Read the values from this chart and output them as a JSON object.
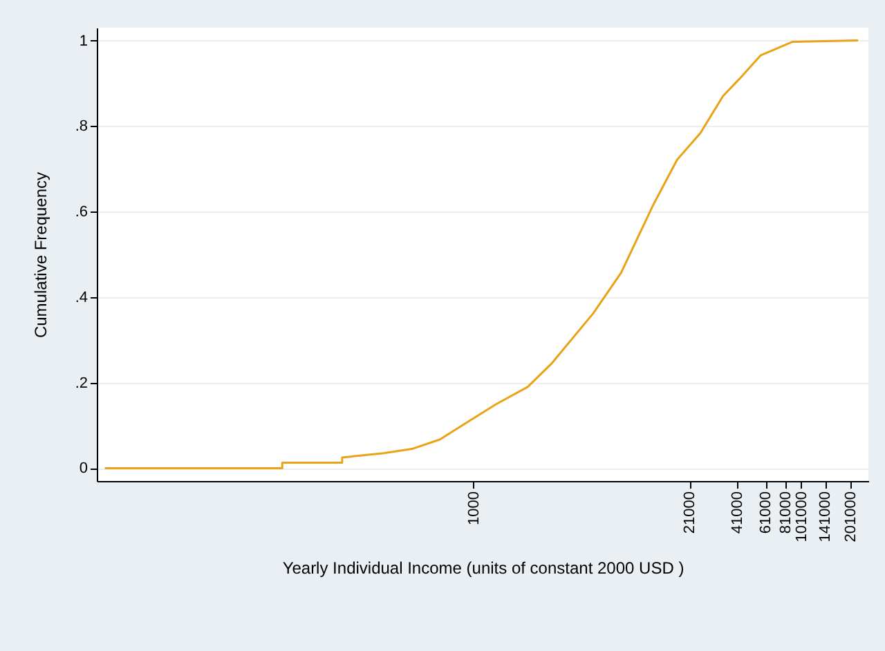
{
  "chart_data": {
    "type": "line",
    "xlabel": "Yearly Individual Income (units of constant 2000 USD )",
    "ylabel": "Cumulative Frequency",
    "log": "x",
    "grid": "y",
    "x": [
      5.6,
      68,
      68,
      158,
      158,
      284,
      422,
      624,
      925,
      1370,
      2150,
      3000,
      5410,
      8010,
      12600,
      17600,
      24500,
      33600,
      42500,
      57000,
      89600,
      225000
    ],
    "series": [
      {
        "color": "#e8a317",
        "values": [
          0,
          0,
          0.013,
          0.013,
          0.025,
          0.035,
          0.045,
          0.067,
          0.108,
          0.149,
          0.19,
          0.244,
          0.362,
          0.457,
          0.616,
          0.721,
          0.784,
          0.87,
          0.911,
          0.965,
          0.997,
          1.0
        ]
      }
    ],
    "xlim": [
      5,
      260000
    ],
    "xticks": [
      1000,
      21000,
      41000,
      61000,
      81000,
      101000,
      141000,
      201000
    ],
    "ylim": [
      -0.03,
      1.03
    ],
    "yticks": [
      {
        "value": 0,
        "label": "0"
      },
      {
        "value": 0.2,
        "label": ".2"
      },
      {
        "value": 0.4,
        "label": ".4"
      },
      {
        "value": 0.6,
        "label": ".6"
      },
      {
        "value": 0.8,
        "label": ".8"
      },
      {
        "value": 1,
        "label": "1"
      }
    ]
  }
}
